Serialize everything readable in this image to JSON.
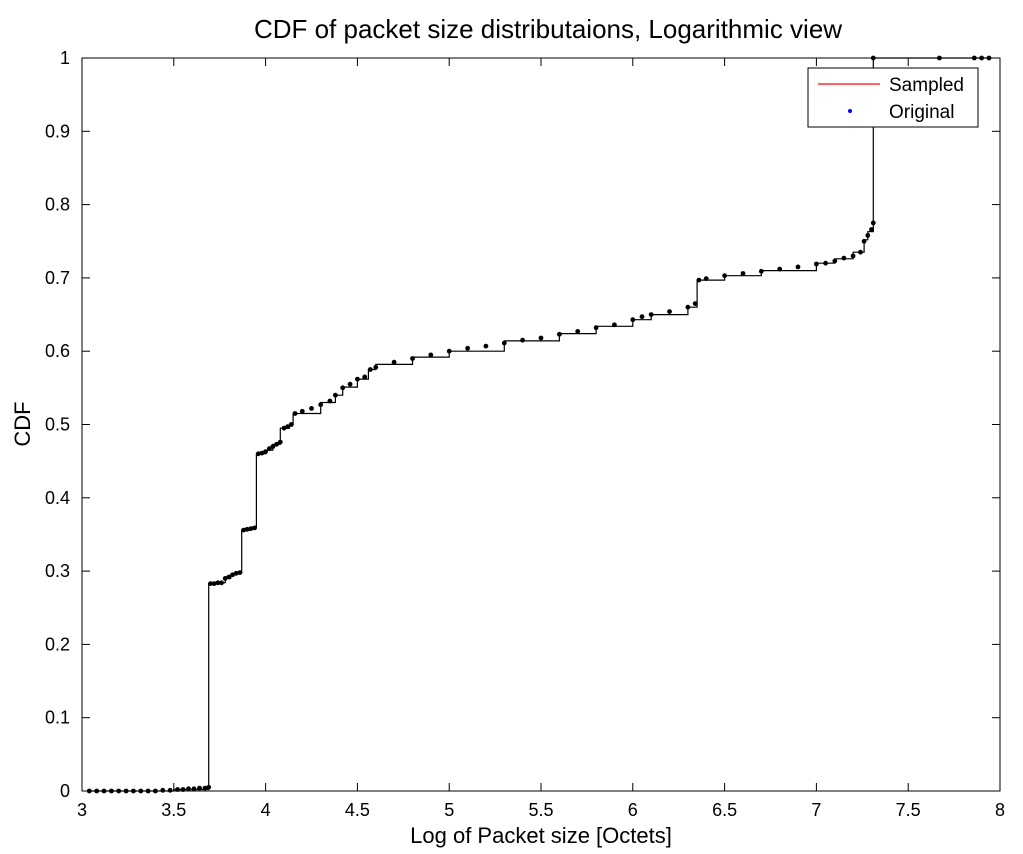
{
  "chart_data": {
    "type": "line",
    "title": "CDF of packet size distributaions, Logarithmic view",
    "xlabel": "Log of Packet size [Octets]",
    "ylabel": "CDF",
    "xlim": [
      3,
      8
    ],
    "ylim": [
      0,
      1
    ],
    "xticks": [
      3,
      3.5,
      4,
      4.5,
      5,
      5.5,
      6,
      6.5,
      7,
      7.5,
      8
    ],
    "yticks": [
      0,
      0.1,
      0.2,
      0.3,
      0.4,
      0.5,
      0.6,
      0.7,
      0.8,
      0.9,
      1
    ],
    "grid": false,
    "legend_position": "top-right",
    "colors": {
      "sampled": "#ff0000",
      "original": "#0000ff",
      "plotted": "#000000"
    },
    "series": [
      {
        "name": "Sampled",
        "style": "line",
        "color": "#ff0000",
        "x": [
          3.04,
          3.5,
          3.69,
          3.69,
          3.76,
          3.78,
          3.81,
          3.84,
          3.87,
          3.87,
          3.92,
          3.95,
          3.95,
          4.0,
          4.04,
          4.08,
          4.08,
          4.13,
          4.15,
          4.3,
          4.38,
          4.42,
          4.5,
          4.56,
          4.6,
          4.8,
          5.0,
          5.3,
          5.6,
          5.8,
          6.0,
          6.1,
          6.3,
          6.35,
          6.35,
          6.5,
          6.7,
          7.0,
          7.1,
          7.2,
          7.26,
          7.28,
          7.31,
          7.31,
          7.67,
          7.85,
          7.9,
          7.94
        ],
        "y": [
          0.0,
          0.002,
          0.005,
          0.283,
          0.284,
          0.29,
          0.295,
          0.298,
          0.3,
          0.356,
          0.36,
          0.36,
          0.46,
          0.465,
          0.473,
          0.476,
          0.495,
          0.5,
          0.515,
          0.53,
          0.54,
          0.551,
          0.562,
          0.575,
          0.582,
          0.592,
          0.6,
          0.614,
          0.624,
          0.634,
          0.643,
          0.65,
          0.66,
          0.665,
          0.697,
          0.703,
          0.71,
          0.72,
          0.726,
          0.735,
          0.752,
          0.763,
          0.775,
          1.0,
          1.0,
          1.0,
          1.0,
          1.0
        ]
      },
      {
        "name": "Original",
        "style": "markers",
        "color": "#0000ff",
        "x": [
          3.04,
          3.08,
          3.12,
          3.16,
          3.2,
          3.24,
          3.28,
          3.32,
          3.36,
          3.4,
          3.44,
          3.48,
          3.52,
          3.55,
          3.58,
          3.61,
          3.64,
          3.67,
          3.69,
          3.7,
          3.72,
          3.74,
          3.76,
          3.78,
          3.8,
          3.82,
          3.84,
          3.86,
          3.88,
          3.9,
          3.92,
          3.94,
          3.96,
          3.98,
          4.0,
          4.02,
          4.04,
          4.06,
          4.08,
          4.1,
          4.12,
          4.14,
          4.16,
          4.2,
          4.25,
          4.3,
          4.35,
          4.38,
          4.42,
          4.46,
          4.5,
          4.54,
          4.57,
          4.6,
          4.7,
          4.8,
          4.9,
          5.0,
          5.1,
          5.2,
          5.3,
          5.4,
          5.5,
          5.6,
          5.7,
          5.8,
          5.9,
          6.0,
          6.05,
          6.1,
          6.2,
          6.3,
          6.34,
          6.36,
          6.4,
          6.5,
          6.6,
          6.7,
          6.8,
          6.9,
          7.0,
          7.05,
          7.1,
          7.15,
          7.2,
          7.24,
          7.26,
          7.28,
          7.3,
          7.31,
          7.31,
          7.67,
          7.86,
          7.9,
          7.94
        ],
        "y": [
          0.0,
          0.0,
          0.0,
          0.0,
          0.0,
          0.0,
          0.0,
          0.0,
          0.0,
          0.0,
          0.001,
          0.001,
          0.002,
          0.002,
          0.003,
          0.003,
          0.004,
          0.004,
          0.005,
          0.283,
          0.283,
          0.284,
          0.284,
          0.29,
          0.292,
          0.295,
          0.297,
          0.298,
          0.356,
          0.357,
          0.358,
          0.359,
          0.46,
          0.461,
          0.463,
          0.467,
          0.47,
          0.473,
          0.476,
          0.495,
          0.497,
          0.5,
          0.515,
          0.518,
          0.522,
          0.527,
          0.532,
          0.54,
          0.55,
          0.555,
          0.562,
          0.565,
          0.575,
          0.578,
          0.585,
          0.59,
          0.595,
          0.6,
          0.604,
          0.607,
          0.611,
          0.615,
          0.618,
          0.623,
          0.627,
          0.632,
          0.636,
          0.643,
          0.647,
          0.65,
          0.654,
          0.66,
          0.665,
          0.697,
          0.699,
          0.703,
          0.706,
          0.709,
          0.712,
          0.715,
          0.719,
          0.72,
          0.723,
          0.727,
          0.73,
          0.735,
          0.75,
          0.758,
          0.766,
          0.775,
          1.0,
          1.0,
          1.0,
          1.0,
          1.0
        ]
      }
    ]
  }
}
